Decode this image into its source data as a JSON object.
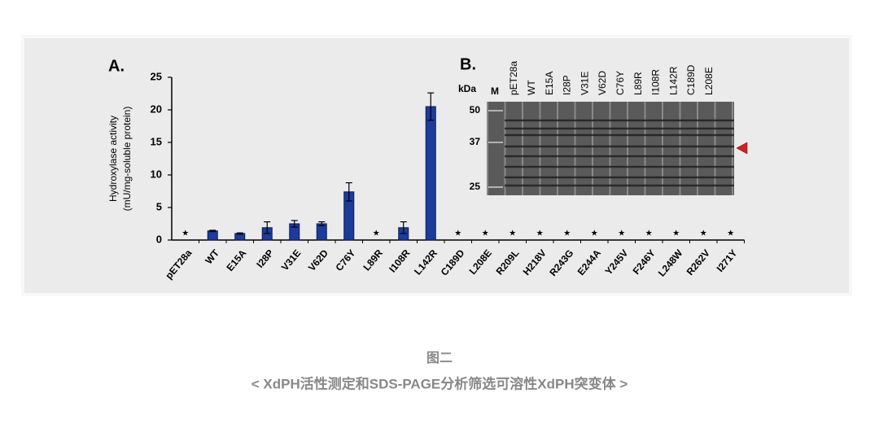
{
  "chart_data": {
    "type": "bar",
    "panel_label": "A.",
    "y_label": [
      "Hydroxylase activity",
      "(mU/mg-soluble protein)"
    ],
    "categories": [
      "pET28a",
      "WT",
      "E15A",
      "I28P",
      "V31E",
      "V62D",
      "C76Y",
      "L89R",
      "I108R",
      "L142R",
      "C189D",
      "L208E",
      "R209L",
      "H218V",
      "R243G",
      "E244A",
      "Y245V",
      "F246Y",
      "L248W",
      "R262V",
      "I271Y"
    ],
    "values": [
      0,
      1.4,
      1.0,
      1.9,
      2.5,
      2.5,
      7.4,
      0,
      1.9,
      20.5,
      0,
      0,
      0,
      0,
      0,
      0,
      0,
      0,
      0,
      0,
      0
    ],
    "errors": [
      0,
      0.1,
      0.1,
      0.9,
      0.5,
      0.3,
      1.4,
      0,
      0.9,
      2.1,
      0,
      0,
      0,
      0,
      0,
      0,
      0,
      0,
      0,
      0,
      0
    ],
    "marker": "★",
    "color": "#1c3c9c",
    "ylim": [
      0,
      25
    ],
    "yticks": [
      0,
      5,
      10,
      15,
      20,
      25
    ]
  },
  "gel": {
    "panel_label": "B.",
    "unit": "kDa",
    "lanes": [
      "M",
      "pET28a",
      "WT",
      "E15A",
      "I28P",
      "V31E",
      "V62D",
      "C76Y",
      "L89R",
      "I108R",
      "L142R",
      "C189D",
      "L208E"
    ],
    "markers": [
      50,
      37,
      25
    ]
  },
  "caption": {
    "title": "图二",
    "subtitle": "< XdPH活性测定和SDS-PAGE分析筛选可溶性XdPH突变体 >"
  }
}
